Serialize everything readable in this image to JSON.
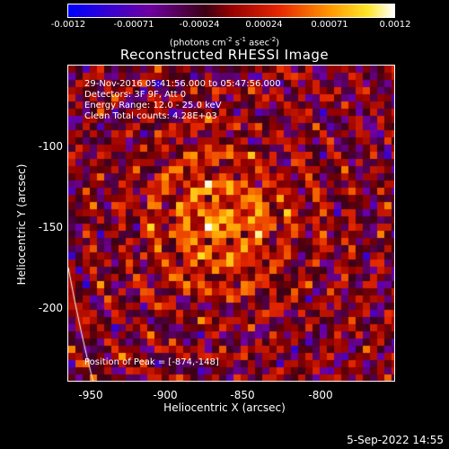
{
  "colorbar": {
    "ticks": [
      "-0.0012",
      "-0.00071",
      "-0.00024",
      "0.00024",
      "0.00071",
      "0.0012"
    ],
    "units": "(photons cm",
    "units_exp1": "-2",
    "units_mid": " s",
    "units_exp2": "-1",
    "units_mid2": " asec",
    "units_exp3": "-2",
    "units_end": ")"
  },
  "title": "Reconstructed RHESSI Image",
  "annotations": {
    "time": "29-Nov-2016 05:41:56.000 to 05:47:56.000",
    "detectors": "Detectors: 3F 9F, Att 0",
    "energy": "Energy Range: 12.0 - 25.0 keV",
    "method": "Clean     Total counts: 4.28E+03",
    "peak": "Position of Peak = [-874,-148]"
  },
  "axes": {
    "xlabel": "Heliocentric X (arcsec)",
    "ylabel": "Heliocentric Y (arcsec)",
    "xticks": [
      "-950",
      "-900",
      "-850",
      "-800"
    ],
    "yticks": [
      "-100",
      "-150",
      "-200"
    ]
  },
  "timestamp": "5-Sep-2022 14:55"
}
